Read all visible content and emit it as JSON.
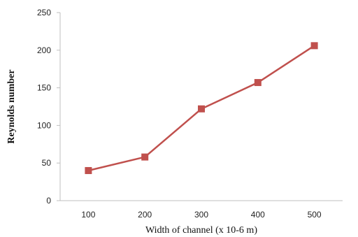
{
  "chart_data": {
    "type": "line",
    "title": "",
    "xlabel": "Width of channel (x 10-6 m)",
    "ylabel": "Reynolds number",
    "categories": [
      "100",
      "200",
      "300",
      "400",
      "500"
    ],
    "series": [
      {
        "values": [
          40,
          58,
          122,
          157,
          206
        ]
      }
    ],
    "ylim": [
      0,
      250
    ],
    "yticks": [
      "0",
      "50",
      "100",
      "150",
      "200",
      "250"
    ],
    "grid": false,
    "marker": "square",
    "colors": {
      "series": "#c0504d",
      "axis": "#bfbfbf"
    }
  }
}
